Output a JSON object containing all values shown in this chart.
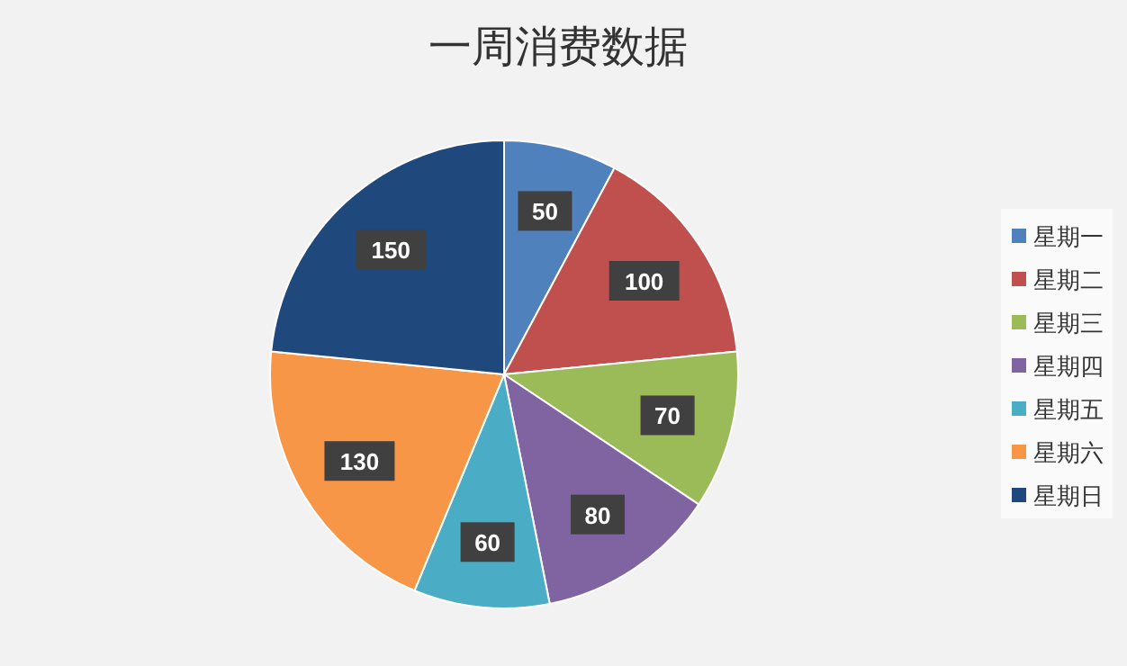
{
  "chart_data": {
    "type": "pie",
    "title": "一周消费数据",
    "categories": [
      "星期一",
      "星期二",
      "星期三",
      "星期四",
      "星期五",
      "星期六",
      "星期日"
    ],
    "values": [
      50,
      100,
      70,
      80,
      60,
      130,
      150
    ],
    "colors": [
      "#4f81bd",
      "#c0504d",
      "#9bbb59",
      "#8064a2",
      "#4bacc6",
      "#f79646",
      "#1f497d"
    ],
    "data_labels": true,
    "legend": "right"
  }
}
